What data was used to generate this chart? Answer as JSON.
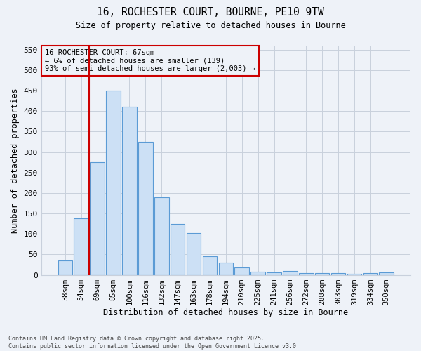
{
  "title_line1": "16, ROCHESTER COURT, BOURNE, PE10 9TW",
  "title_line2": "Size of property relative to detached houses in Bourne",
  "xlabel": "Distribution of detached houses by size in Bourne",
  "ylabel": "Number of detached properties",
  "categories": [
    "38sqm",
    "54sqm",
    "69sqm",
    "85sqm",
    "100sqm",
    "116sqm",
    "132sqm",
    "147sqm",
    "163sqm",
    "178sqm",
    "194sqm",
    "210sqm",
    "225sqm",
    "241sqm",
    "256sqm",
    "272sqm",
    "288sqm",
    "303sqm",
    "319sqm",
    "334sqm",
    "350sqm"
  ],
  "values": [
    35,
    138,
    275,
    450,
    410,
    325,
    190,
    125,
    103,
    46,
    30,
    18,
    8,
    6,
    10,
    5,
    5,
    5,
    2,
    5,
    6
  ],
  "bar_color": "#cce0f5",
  "bar_edge_color": "#5b9bd5",
  "grid_color": "#c8d0dc",
  "annotation_line1": "16 ROCHESTER COURT: 67sqm",
  "annotation_line2": "← 6% of detached houses are smaller (139)",
  "annotation_line3": "93% of semi-detached houses are larger (2,003) →",
  "vline_x_index": 1.5,
  "vline_color": "#cc0000",
  "annotation_box_color": "#cc0000",
  "ylim": [
    0,
    560
  ],
  "yticks": [
    0,
    50,
    100,
    150,
    200,
    250,
    300,
    350,
    400,
    450,
    500,
    550
  ],
  "footnote": "Contains HM Land Registry data © Crown copyright and database right 2025.\nContains public sector information licensed under the Open Government Licence v3.0.",
  "background_color": "#eef2f8"
}
